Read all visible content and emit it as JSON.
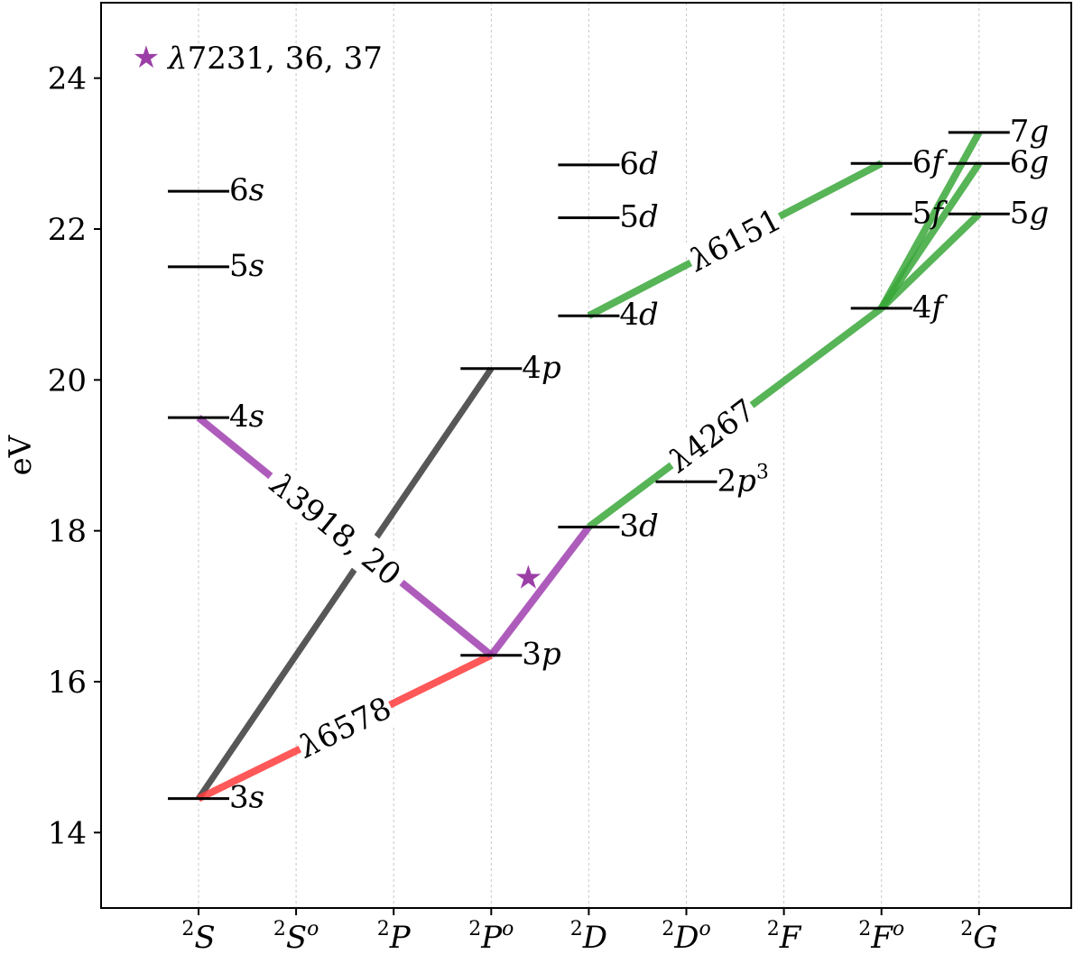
{
  "chart_data": {
    "type": "energy-level-diagram",
    "ylabel": "eV",
    "ylim": [
      13,
      25
    ],
    "yticks": [
      14,
      16,
      18,
      20,
      22,
      24
    ],
    "grid_vertical": true,
    "terms": [
      {
        "key": "2S",
        "base": "S",
        "parity": ""
      },
      {
        "key": "2So",
        "base": "S",
        "parity": "o"
      },
      {
        "key": "2P",
        "base": "P",
        "parity": ""
      },
      {
        "key": "2Po",
        "base": "P",
        "parity": "o"
      },
      {
        "key": "2D",
        "base": "D",
        "parity": ""
      },
      {
        "key": "2Do",
        "base": "D",
        "parity": "o"
      },
      {
        "key": "2F",
        "base": "F",
        "parity": ""
      },
      {
        "key": "2Fo",
        "base": "F",
        "parity": "o"
      },
      {
        "key": "2G",
        "base": "G",
        "parity": ""
      }
    ],
    "multiplicity": "2",
    "levels": [
      {
        "id": "3s",
        "num": "3",
        "letter": "s",
        "sup": "",
        "term": 0,
        "energy": 14.45
      },
      {
        "id": "4s",
        "num": "4",
        "letter": "s",
        "sup": "",
        "term": 0,
        "energy": 19.5
      },
      {
        "id": "5s",
        "num": "5",
        "letter": "s",
        "sup": "",
        "term": 0,
        "energy": 21.5
      },
      {
        "id": "6s",
        "num": "6",
        "letter": "s",
        "sup": "",
        "term": 0,
        "energy": 22.5
      },
      {
        "id": "3p",
        "num": "3",
        "letter": "p",
        "sup": "",
        "term": 3,
        "energy": 16.35
      },
      {
        "id": "4p",
        "num": "4",
        "letter": "p",
        "sup": "",
        "term": 3,
        "energy": 20.15
      },
      {
        "id": "3d",
        "num": "3",
        "letter": "d",
        "sup": "",
        "term": 4,
        "energy": 18.05
      },
      {
        "id": "4d",
        "num": "4",
        "letter": "d",
        "sup": "",
        "term": 4,
        "energy": 20.85
      },
      {
        "id": "5d",
        "num": "5",
        "letter": "d",
        "sup": "",
        "term": 4,
        "energy": 22.15
      },
      {
        "id": "6d",
        "num": "6",
        "letter": "d",
        "sup": "",
        "term": 4,
        "energy": 22.85
      },
      {
        "id": "2p3",
        "num": "2",
        "letter": "p",
        "sup": "3",
        "term": 5,
        "energy": 18.65
      },
      {
        "id": "4f",
        "num": "4",
        "letter": "f",
        "sup": "",
        "term": 7,
        "energy": 20.95
      },
      {
        "id": "5f",
        "num": "5",
        "letter": "f",
        "sup": "",
        "term": 7,
        "energy": 22.2
      },
      {
        "id": "6f",
        "num": "6",
        "letter": "f",
        "sup": "",
        "term": 7,
        "energy": 22.87
      },
      {
        "id": "5g",
        "num": "5",
        "letter": "g",
        "sup": "",
        "term": 8,
        "energy": 22.2
      },
      {
        "id": "6g",
        "num": "6",
        "letter": "g",
        "sup": "",
        "term": 8,
        "energy": 22.87
      },
      {
        "id": "7g",
        "num": "7",
        "letter": "g",
        "sup": "",
        "term": 8,
        "energy": 23.28
      }
    ],
    "transitions": [
      {
        "from": "3s",
        "to": "4p",
        "color": "#3a3a3a",
        "width": 7
      },
      {
        "from": "3s",
        "to": "3p",
        "color": "#ff3b3b",
        "width": 8,
        "label": "λ6578",
        "label_t": 0.5
      },
      {
        "from": "4s",
        "to": "3p",
        "color": "#a040b0",
        "width": 8,
        "label": "λ3918, 20",
        "label_t": 0.47
      },
      {
        "from": "3p",
        "to": "3d",
        "color": "#a040b0",
        "width": 8
      },
      {
        "from": "3d",
        "to": "4f",
        "color": "#3aa83a",
        "width": 8,
        "label": "λ4267",
        "label_t": 0.42
      },
      {
        "from": "4d",
        "to": "6f",
        "color": "#3aa83a",
        "width": 8,
        "label": "λ6151",
        "label_t": 0.5
      },
      {
        "from": "4f",
        "to": "5g",
        "color": "#3aa83a",
        "width": 8
      },
      {
        "from": "4f",
        "to": "6g",
        "color": "#3aa83a",
        "width": 8
      },
      {
        "from": "4f",
        "to": "7g",
        "color": "#3aa83a",
        "width": 8
      }
    ],
    "marker": {
      "symbol": "★",
      "color": "#9b3fa6",
      "term_offset": 3.38,
      "energy": 17.38
    },
    "legend": {
      "label": "λ7231, 36, 37",
      "color": "#9b3fa6",
      "position": "top-left"
    }
  }
}
